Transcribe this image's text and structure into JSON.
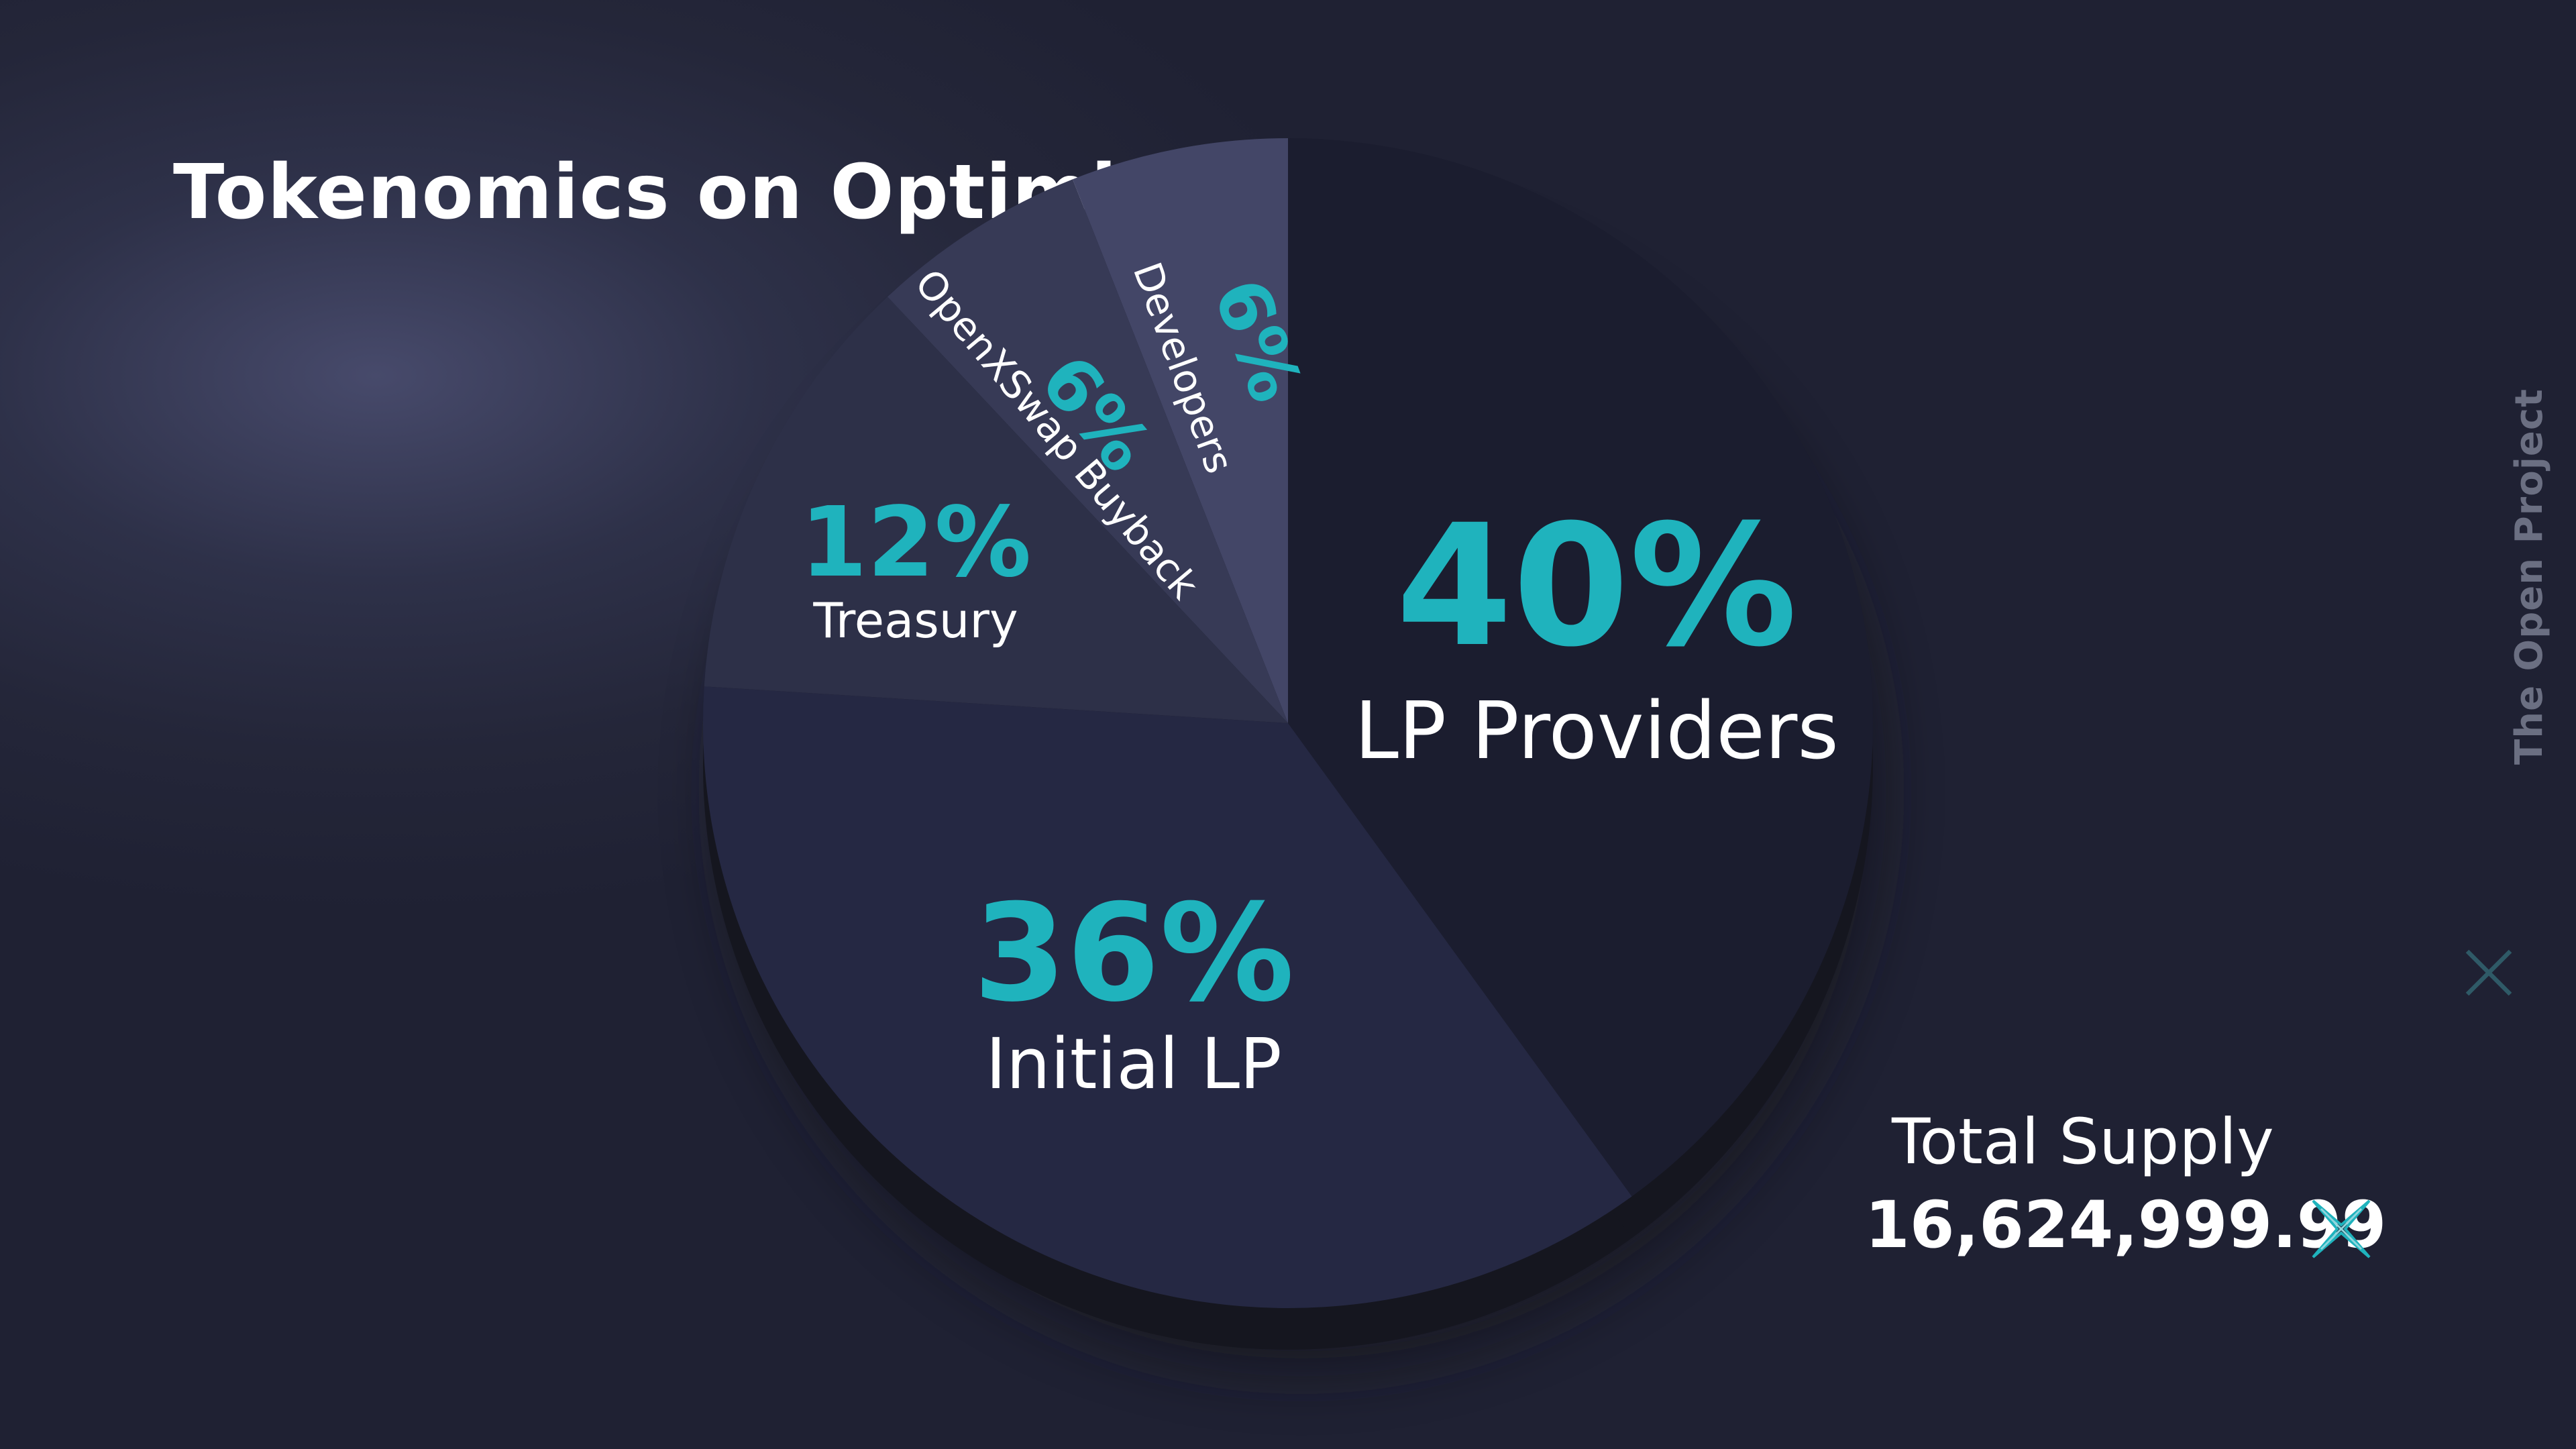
{
  "chart_data": {
    "type": "pie",
    "title": "Tokenomics on Optimism",
    "slices": [
      {
        "label": "LP Providers",
        "value": 40,
        "pct_label": "40%",
        "color": "#1b1d2f"
      },
      {
        "label": "Initial LP",
        "value": 36,
        "pct_label": "36%",
        "color": "#252843"
      },
      {
        "label": "Treasury",
        "value": 12,
        "pct_label": "12%",
        "color": "#2d3048"
      },
      {
        "label": "OpenXSwap Buyback",
        "value": 6,
        "pct_label": "6%",
        "color": "#373a56"
      },
      {
        "label": "Developers",
        "value": 6,
        "pct_label": "6%",
        "color": "#434667"
      }
    ]
  },
  "supply": {
    "label": "Total Supply",
    "value": "16,624,999.99"
  },
  "brand": {
    "text": "The Open Project",
    "icon": "x-logo-icon"
  },
  "colors": {
    "accent": "#1fb3bd",
    "background": "#242639"
  }
}
